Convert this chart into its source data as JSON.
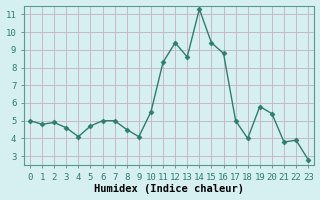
{
  "x": [
    0,
    1,
    2,
    3,
    4,
    5,
    6,
    7,
    8,
    9,
    10,
    11,
    12,
    13,
    14,
    15,
    16,
    17,
    18,
    19,
    20,
    21,
    22,
    23
  ],
  "y": [
    5.0,
    4.8,
    4.9,
    4.6,
    4.1,
    4.7,
    5.0,
    5.0,
    4.5,
    4.1,
    5.5,
    8.3,
    9.4,
    8.6,
    11.3,
    9.4,
    8.8,
    5.0,
    4.0,
    5.8,
    5.4,
    3.8,
    3.9,
    2.8
  ],
  "line_color": "#2e7d6e",
  "marker": "D",
  "marker_size": 2.5,
  "bg_color": "#d6eff0",
  "grid_color": "#c8b8c8",
  "xlabel": "Humidex (Indice chaleur)",
  "xlim": [
    -0.5,
    23.5
  ],
  "ylim": [
    2.5,
    11.5
  ],
  "yticks": [
    3,
    4,
    5,
    6,
    7,
    8,
    9,
    10,
    11
  ],
  "xticks": [
    0,
    1,
    2,
    3,
    4,
    5,
    6,
    7,
    8,
    9,
    10,
    11,
    12,
    13,
    14,
    15,
    16,
    17,
    18,
    19,
    20,
    21,
    22,
    23
  ],
  "tick_fontsize": 6.5,
  "xlabel_fontsize": 7.5,
  "spine_color": "#5a9a8a",
  "linewidth": 1.0
}
